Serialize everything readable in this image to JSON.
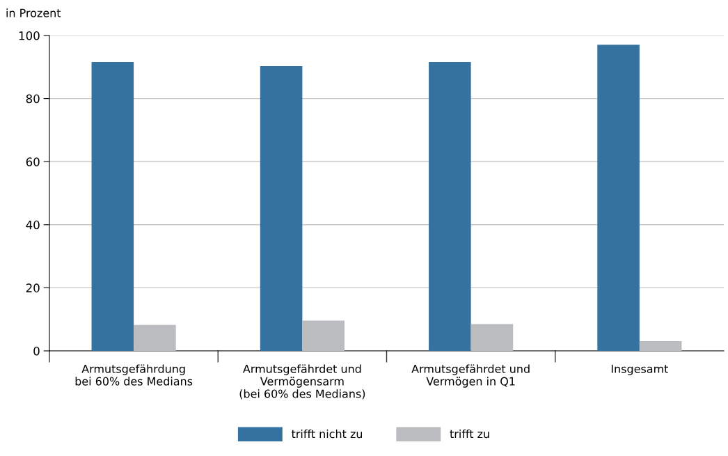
{
  "chart_data": {
    "type": "bar",
    "ylabel": "in Prozent",
    "categories": [
      "Armutsgefährdung\nbei 60% des Medians",
      "Armutsgefährdet und\nVermögensarm\n(bei 60% des Medians)",
      "Armutsgefährdet und\nVermögen in Q1",
      "Insgesamt"
    ],
    "series": [
      {
        "name": "trifft nicht zu",
        "color": "#36729f",
        "values": [
          91.6,
          90.3,
          91.6,
          97.1
        ]
      },
      {
        "name": "trifft zu",
        "color": "#bbbcbf",
        "values": [
          8.2,
          9.6,
          8.5,
          3.1
        ]
      }
    ],
    "ylim": [
      0,
      100
    ],
    "yticks": [
      0,
      20,
      40,
      60,
      80,
      100
    ],
    "grid": "y",
    "legend": "bottom"
  }
}
